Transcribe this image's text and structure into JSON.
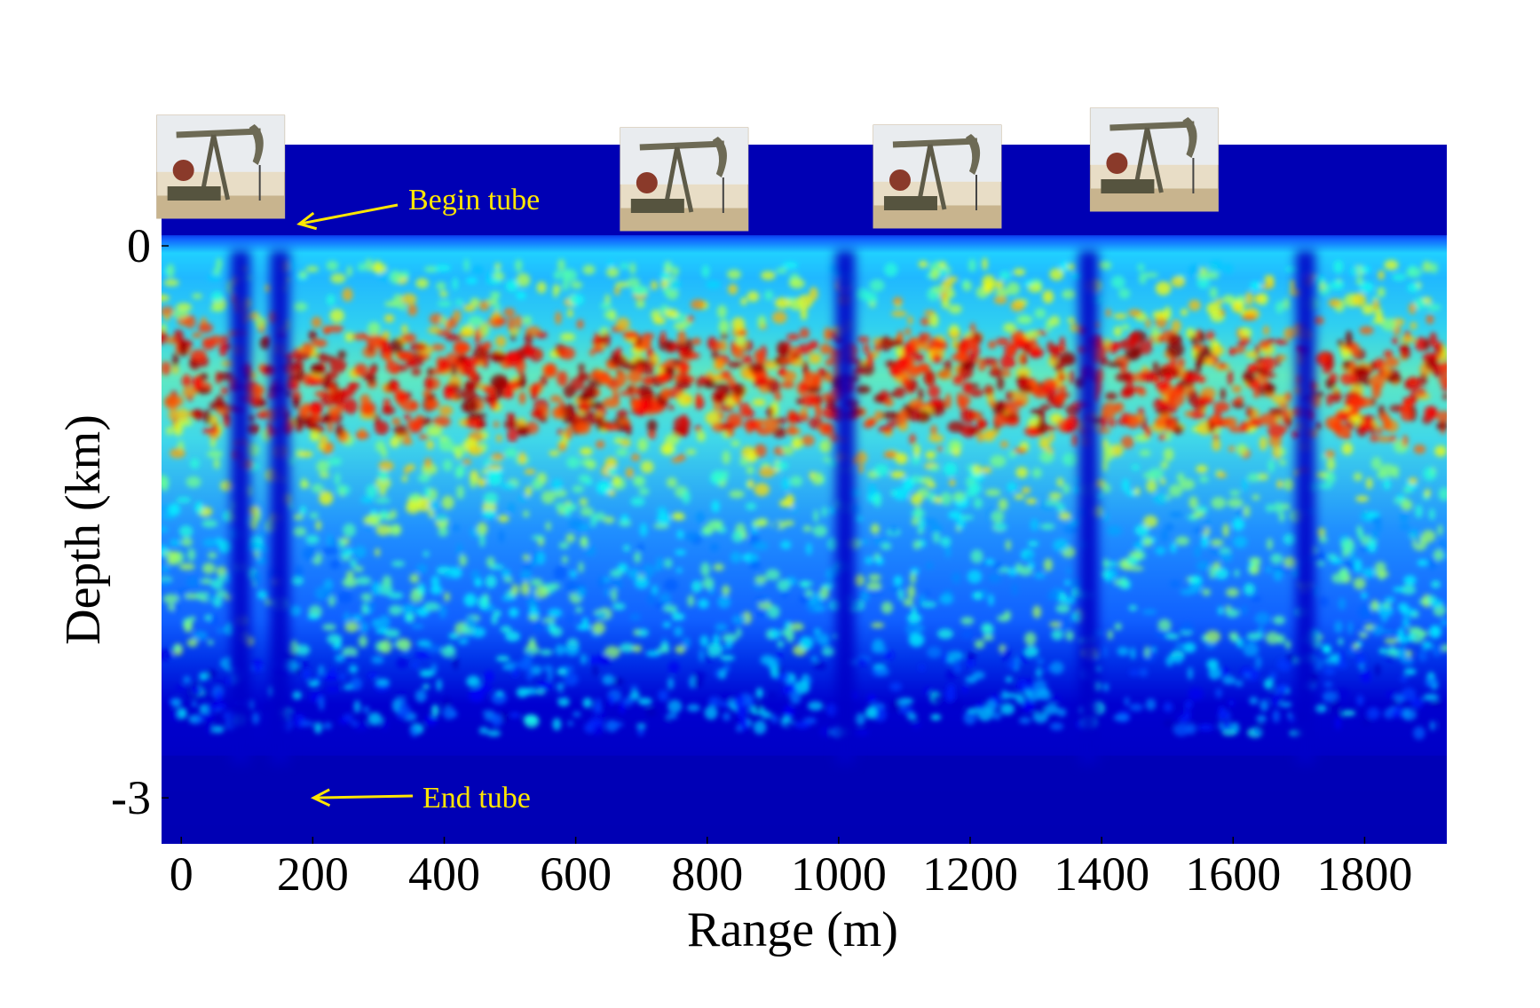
{
  "chart_data": {
    "type": "heatmap",
    "title": "",
    "xlabel": "Range (m)",
    "ylabel": "Depth (km)",
    "x_ticks": [
      "0",
      "200",
      "400",
      "600",
      "800",
      "1000",
      "1200",
      "1400",
      "1600",
      "1800"
    ],
    "x_tick_values": [
      0,
      200,
      400,
      600,
      800,
      1000,
      1200,
      1400,
      1600,
      1800
    ],
    "y_ticks": [
      "0",
      "-3"
    ],
    "y_tick_values": [
      0,
      -3
    ],
    "xlim": [
      -30,
      1925
    ],
    "ylim": [
      -3.25,
      0.55
    ],
    "colormap": "jet",
    "low_color": "#0000b4",
    "high_color": "#800000",
    "bright_layer": {
      "depth_km": -0.75,
      "intensity": "high"
    },
    "signal_floor_depth_km": -2.65,
    "low_signal_columns_m": [
      90,
      150,
      1010,
      1380,
      1710
    ],
    "annotations": [
      {
        "label": "Begin tube",
        "points_to": {
          "x": 150,
          "y": 0.1
        }
      },
      {
        "label": "End tube",
        "points_to": {
          "x": 150,
          "y": -3.0
        }
      }
    ],
    "pumpjacks_at_m": [
      60,
      765,
      1150,
      1480
    ],
    "icons": [
      "pumpjack-photo"
    ],
    "annotation_color": "#ffe600"
  }
}
